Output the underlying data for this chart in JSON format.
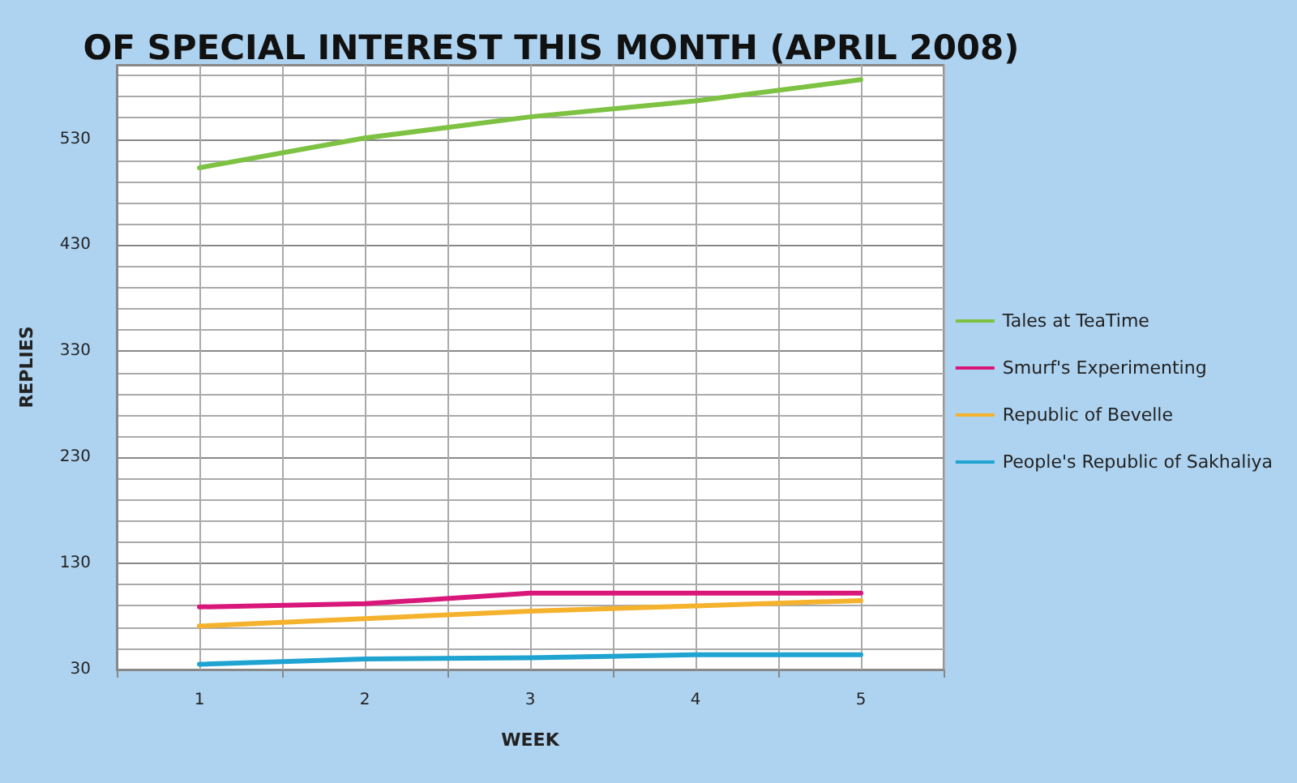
{
  "chart_data": {
    "type": "line",
    "title": "OF SPECIAL INTEREST THIS MONTH (APRIL 2008)",
    "xlabel": "WEEK",
    "ylabel": "REPLIES",
    "categories": [
      "1",
      "2",
      "3",
      "4",
      "5"
    ],
    "series": [
      {
        "name": "Tales at TeaTime",
        "color": "#7dc242",
        "values": [
          503,
          531,
          551,
          566,
          586
        ]
      },
      {
        "name": "Smurf's Experimenting",
        "color": "#d9177b",
        "values": [
          89,
          92,
          102,
          102,
          102
        ]
      },
      {
        "name": "Republic of Bevelle",
        "color": "#f5b22d",
        "values": [
          71,
          78,
          85,
          90,
          95
        ]
      },
      {
        "name": "People's Republic of Sakhaliya",
        "color": "#1fa3d1",
        "values": [
          35,
          40,
          41,
          44,
          44
        ]
      }
    ],
    "ylim": [
      30,
      600
    ],
    "yticks": [
      30,
      130,
      230,
      330,
      430,
      530
    ],
    "grid": true,
    "legend": "right",
    "marker": "none",
    "line_style": "solid"
  }
}
